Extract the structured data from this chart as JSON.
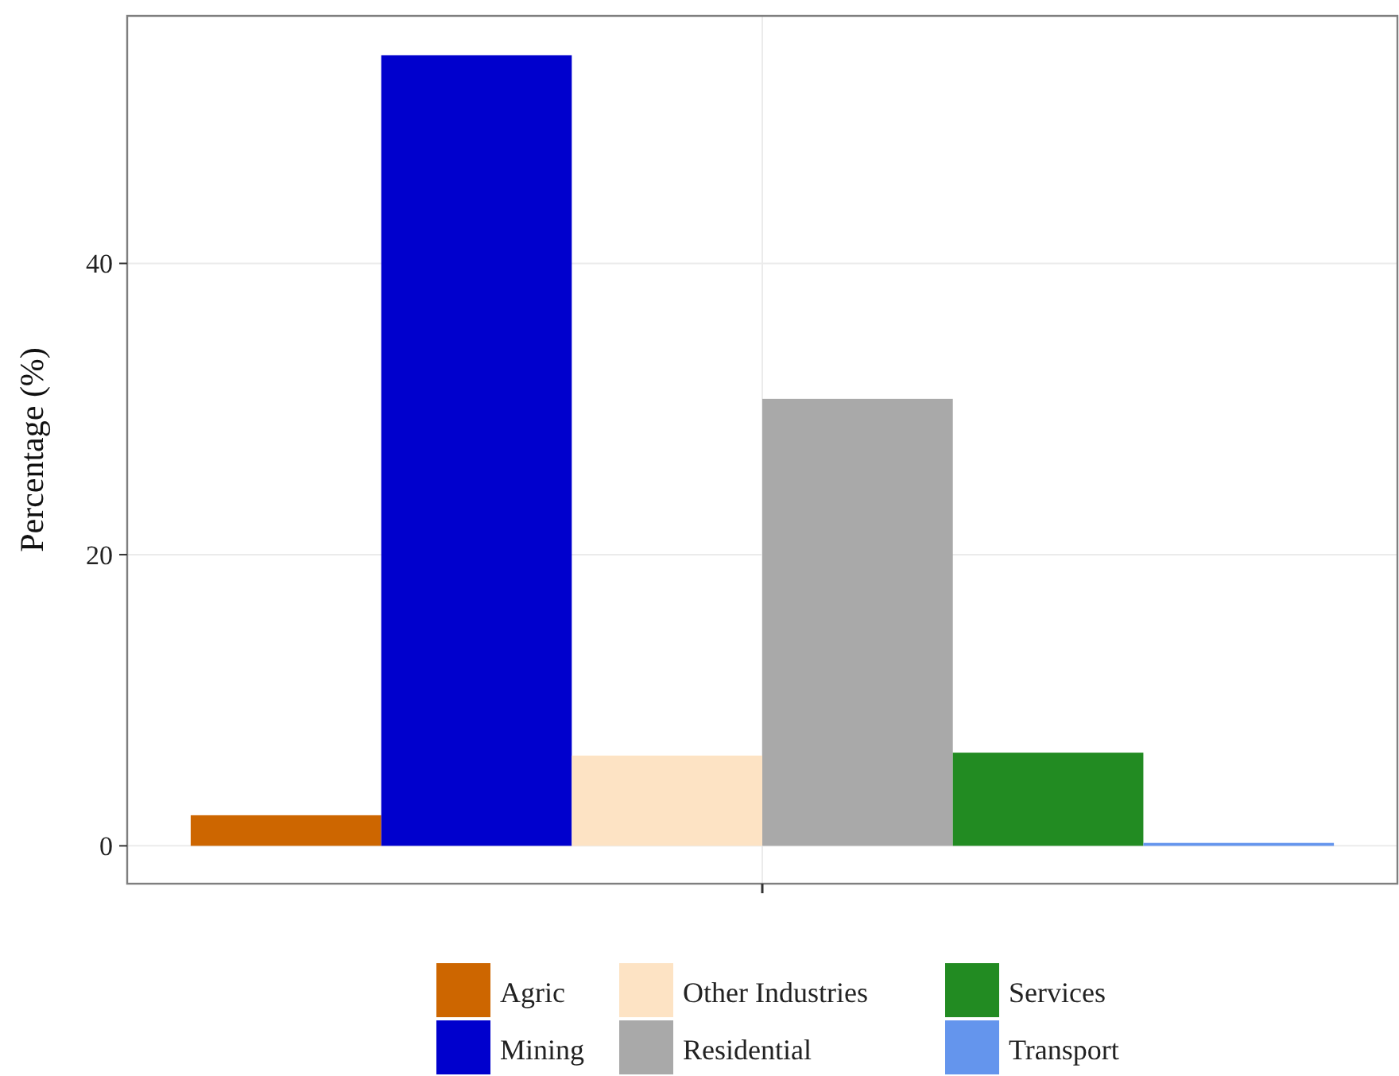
{
  "chart_data": {
    "type": "bar",
    "ylabel": "Percentage (%)",
    "categories": [
      null
    ],
    "series": [
      {
        "name": "Agric",
        "color": "#cd6600",
        "values": [
          2.1
        ]
      },
      {
        "name": "Mining",
        "color": "#0000cd",
        "values": [
          54.3
        ]
      },
      {
        "name": "Other Industries",
        "color": "#fde3c4",
        "values": [
          6.2
        ]
      },
      {
        "name": "Residential",
        "color": "#a9a9a9",
        "values": [
          30.7
        ]
      },
      {
        "name": "Services",
        "color": "#228b22",
        "values": [
          6.4
        ]
      },
      {
        "name": "Transport",
        "color": "#6495ed",
        "values": [
          0.2
        ]
      }
    ],
    "ylim": [
      -2.6,
      57
    ],
    "yticks": [
      0,
      20,
      40
    ],
    "grid": true,
    "legend": "bottom"
  }
}
